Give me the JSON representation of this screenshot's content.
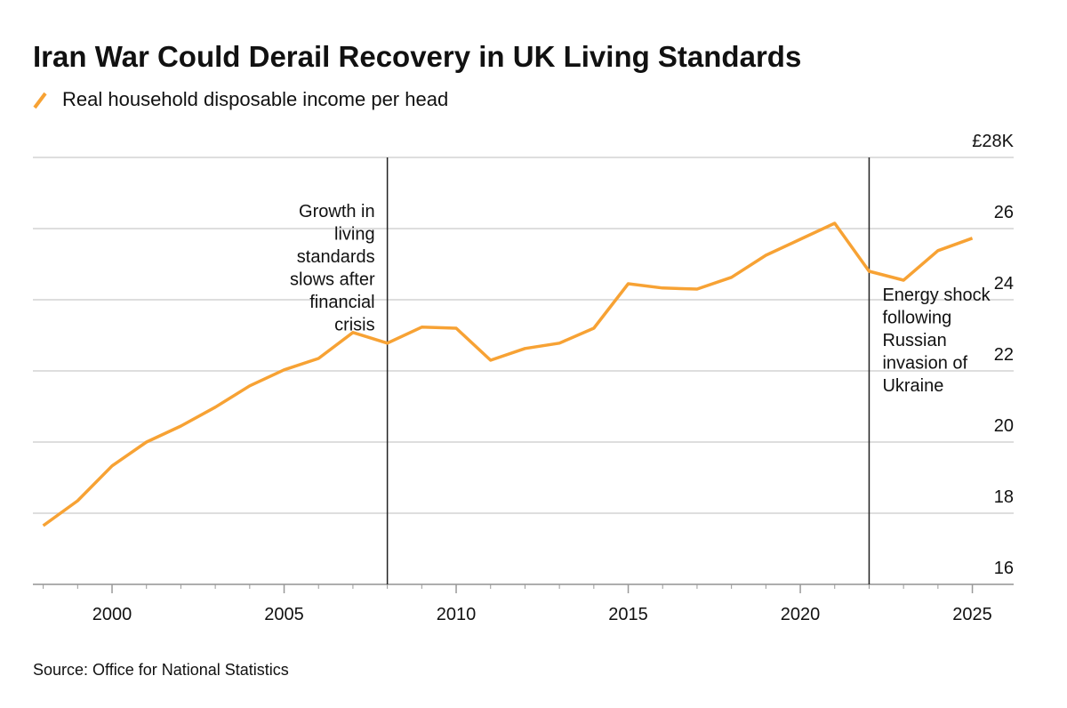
{
  "chart_data": {
    "type": "line",
    "title": "Iran War Could Derail Recovery in UK Living Standards",
    "source": "Source: Office for National Statistics",
    "x": [
      1998,
      1999,
      2000,
      2001,
      2002,
      2003,
      2004,
      2005,
      2006,
      2007,
      2008,
      2009,
      2010,
      2011,
      2012,
      2013,
      2014,
      2015,
      2016,
      2017,
      2018,
      2019,
      2020,
      2021,
      2022,
      2023,
      2024,
      2025
    ],
    "series": [
      {
        "name": "Real household disposable income per head",
        "color": "#f7a234",
        "values": [
          17.65,
          18.35,
          19.33,
          20.0,
          20.45,
          20.98,
          21.58,
          22.03,
          22.35,
          23.08,
          22.78,
          23.23,
          23.2,
          22.3,
          22.63,
          22.78,
          23.2,
          24.45,
          24.33,
          24.3,
          24.63,
          25.25,
          25.7,
          26.15,
          24.8,
          24.55,
          25.38,
          25.73
        ]
      }
    ],
    "xlim": [
      1997.7,
      2026.2
    ],
    "xticks": [
      2000,
      2005,
      2010,
      2015,
      2020,
      2025
    ],
    "ylim": [
      16,
      28
    ],
    "yticks": [
      16,
      18,
      20,
      22,
      24,
      26,
      {
        "value": 28,
        "label": "£28K"
      }
    ],
    "grid": true,
    "annotations": [
      {
        "x": 2008,
        "lines": [
          "Growth in",
          "living",
          "standards",
          "slows after",
          "financial",
          "crisis"
        ],
        "align": "left-of-line"
      },
      {
        "x": 2022,
        "lines": [
          "Energy shock",
          "following",
          "Russian",
          "invasion of",
          "Ukraine"
        ],
        "align": "right-of-line"
      }
    ]
  }
}
